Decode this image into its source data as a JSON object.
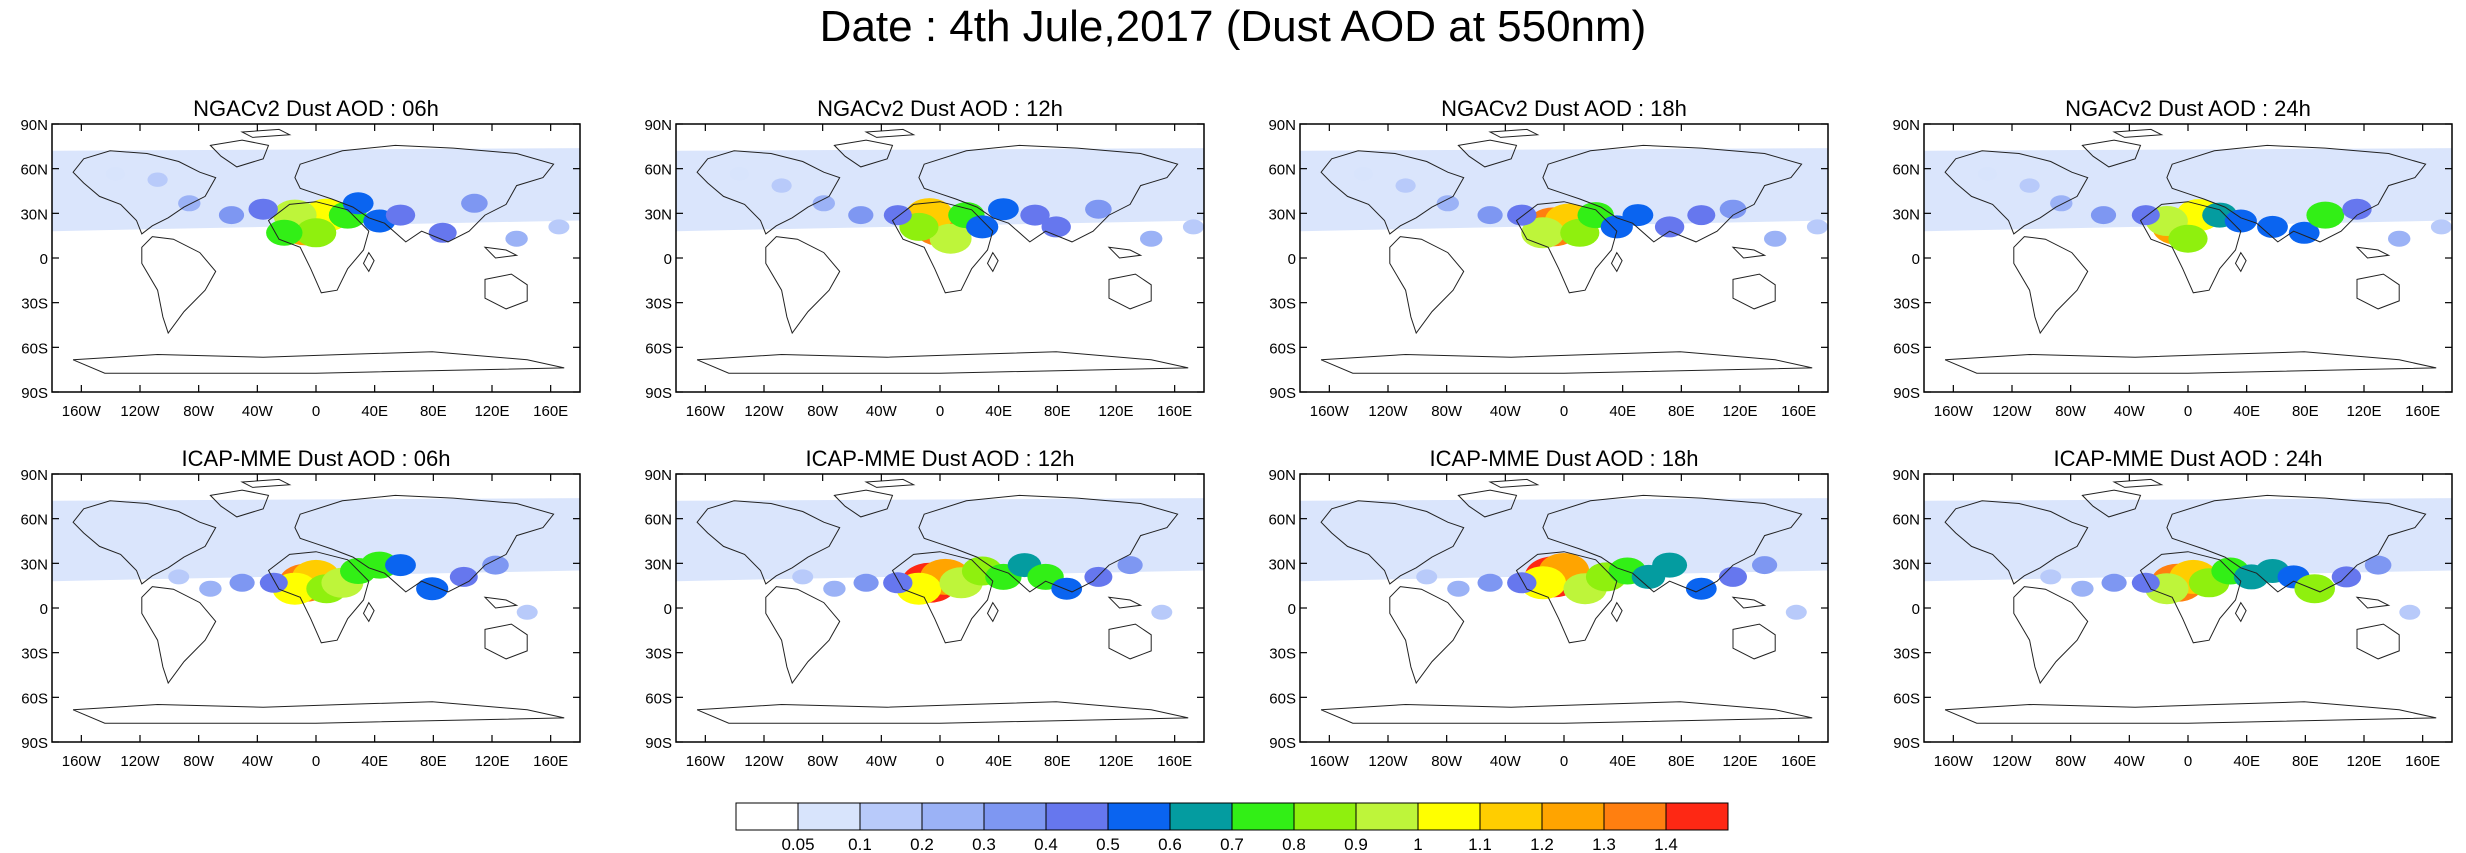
{
  "title": "Date : 4th Jule,2017 (Dust AOD at 550nm)",
  "panels": [
    {
      "title": "NGACv2 Dust AOD : 06h",
      "model": "NGACv2",
      "hour": "06h",
      "field": [
        [
          48,
          12,
          1.25
        ],
        [
          52,
          10,
          1.05
        ],
        [
          46,
          10,
          0.95
        ],
        [
          50,
          13,
          0.85
        ],
        [
          44,
          13,
          0.7
        ],
        [
          56,
          10,
          0.75
        ],
        [
          58,
          8,
          0.5
        ],
        [
          62,
          11,
          0.55
        ],
        [
          66,
          10,
          0.45
        ],
        [
          74,
          13,
          0.4
        ],
        [
          80,
          8,
          0.35
        ],
        [
          40,
          9,
          0.45
        ],
        [
          34,
          10,
          0.3
        ],
        [
          26,
          8,
          0.2
        ],
        [
          20,
          4,
          0.12
        ],
        [
          12,
          3,
          0.08
        ],
        [
          88,
          14,
          0.2
        ],
        [
          96,
          12,
          0.15
        ],
        [
          104,
          14,
          0.1
        ]
      ]
    },
    {
      "title": "NGACv2 Dust AOD : 12h",
      "model": "NGACv2",
      "hour": "12h",
      "field": [
        [
          50,
          12,
          1.3
        ],
        [
          48,
          10,
          1.1
        ],
        [
          52,
          14,
          0.9
        ],
        [
          46,
          12,
          0.8
        ],
        [
          55,
          10,
          0.7
        ],
        [
          58,
          12,
          0.55
        ],
        [
          62,
          9,
          0.5
        ],
        [
          68,
          10,
          0.45
        ],
        [
          72,
          12,
          0.45
        ],
        [
          80,
          9,
          0.35
        ],
        [
          42,
          10,
          0.4
        ],
        [
          35,
          10,
          0.3
        ],
        [
          28,
          8,
          0.2
        ],
        [
          20,
          5,
          0.12
        ],
        [
          12,
          3,
          0.08
        ],
        [
          90,
          14,
          0.2
        ],
        [
          98,
          12,
          0.15
        ]
      ]
    },
    {
      "title": "NGACv2 Dust AOD : 18h",
      "model": "NGACv2",
      "hour": "18h",
      "field": [
        [
          48,
          12,
          1.35
        ],
        [
          51,
          11,
          1.15
        ],
        [
          46,
          13,
          0.95
        ],
        [
          53,
          13,
          0.8
        ],
        [
          56,
          10,
          0.7
        ],
        [
          60,
          12,
          0.55
        ],
        [
          64,
          10,
          0.5
        ],
        [
          70,
          12,
          0.45
        ],
        [
          76,
          10,
          0.4
        ],
        [
          82,
          9,
          0.35
        ],
        [
          42,
          10,
          0.45
        ],
        [
          36,
          10,
          0.3
        ],
        [
          28,
          8,
          0.2
        ],
        [
          20,
          5,
          0.12
        ],
        [
          12,
          3,
          0.08
        ],
        [
          90,
          14,
          0.2
        ],
        [
          98,
          12,
          0.15
        ]
      ]
    },
    {
      "title": "NGACv2 Dust AOD : 24h",
      "model": "NGACv2",
      "hour": "24h",
      "field": [
        [
          48,
          12,
          1.2
        ],
        [
          52,
          10,
          1.0
        ],
        [
          46,
          11,
          0.9
        ],
        [
          50,
          14,
          0.8
        ],
        [
          56,
          10,
          0.65
        ],
        [
          60,
          11,
          0.55
        ],
        [
          66,
          12,
          0.5
        ],
        [
          72,
          13,
          0.5
        ],
        [
          76,
          10,
          0.75
        ],
        [
          82,
          9,
          0.45
        ],
        [
          42,
          10,
          0.4
        ],
        [
          34,
          10,
          0.3
        ],
        [
          26,
          8,
          0.2
        ],
        [
          20,
          5,
          0.12
        ],
        [
          12,
          3,
          0.08
        ],
        [
          90,
          14,
          0.2
        ],
        [
          98,
          12,
          0.15
        ]
      ]
    },
    {
      "title": "ICAP-MME Dust AOD : 06h",
      "model": "ICAP-MME",
      "hour": "06h",
      "field": [
        [
          48,
          13,
          1.3
        ],
        [
          50,
          12,
          1.1
        ],
        [
          46,
          14,
          1.0
        ],
        [
          52,
          14,
          0.85
        ],
        [
          55,
          13,
          0.9
        ],
        [
          58,
          11,
          0.7
        ],
        [
          62,
          10,
          0.75
        ],
        [
          66,
          10,
          0.5
        ],
        [
          72,
          14,
          0.55
        ],
        [
          78,
          12,
          0.4
        ],
        [
          84,
          10,
          0.35
        ],
        [
          42,
          13,
          0.4
        ],
        [
          36,
          13,
          0.3
        ],
        [
          30,
          14,
          0.2
        ],
        [
          24,
          12,
          0.15
        ],
        [
          90,
          18,
          0.15
        ]
      ]
    },
    {
      "title": "ICAP-MME Dust AOD : 12h",
      "model": "ICAP-MME",
      "hour": "12h",
      "field": [
        [
          48,
          13,
          1.4
        ],
        [
          51,
          12,
          1.2
        ],
        [
          46,
          14,
          1.0
        ],
        [
          54,
          13,
          0.95
        ],
        [
          58,
          11,
          0.85
        ],
        [
          62,
          12,
          0.7
        ],
        [
          66,
          10,
          0.6
        ],
        [
          70,
          12,
          0.7
        ],
        [
          74,
          14,
          0.5
        ],
        [
          80,
          12,
          0.4
        ],
        [
          86,
          10,
          0.3
        ],
        [
          42,
          13,
          0.45
        ],
        [
          36,
          13,
          0.3
        ],
        [
          30,
          14,
          0.2
        ],
        [
          24,
          12,
          0.15
        ],
        [
          92,
          18,
          0.15
        ]
      ]
    },
    {
      "title": "ICAP-MME Dust AOD : 18h",
      "model": "ICAP-MME",
      "hour": "18h",
      "field": [
        [
          48,
          12,
          1.45
        ],
        [
          50,
          11,
          1.2
        ],
        [
          46,
          13,
          1.05
        ],
        [
          54,
          14,
          0.95
        ],
        [
          58,
          12,
          0.85
        ],
        [
          62,
          11,
          0.75
        ],
        [
          66,
          12,
          0.6
        ],
        [
          70,
          10,
          0.65
        ],
        [
          76,
          14,
          0.5
        ],
        [
          82,
          12,
          0.4
        ],
        [
          88,
          10,
          0.3
        ],
        [
          42,
          13,
          0.45
        ],
        [
          36,
          13,
          0.3
        ],
        [
          30,
          14,
          0.2
        ],
        [
          24,
          12,
          0.15
        ],
        [
          94,
          18,
          0.15
        ]
      ]
    },
    {
      "title": "ICAP-MME Dust AOD : 24h",
      "model": "ICAP-MME",
      "hour": "24h",
      "field": [
        [
          48,
          13,
          1.3
        ],
        [
          51,
          12,
          1.1
        ],
        [
          46,
          14,
          0.95
        ],
        [
          54,
          13,
          0.85
        ],
        [
          58,
          11,
          0.75
        ],
        [
          62,
          12,
          0.65
        ],
        [
          66,
          11,
          0.6
        ],
        [
          70,
          12,
          0.55
        ],
        [
          74,
          14,
          0.85
        ],
        [
          80,
          12,
          0.45
        ],
        [
          86,
          10,
          0.35
        ],
        [
          42,
          13,
          0.4
        ],
        [
          36,
          13,
          0.3
        ],
        [
          30,
          14,
          0.2
        ],
        [
          24,
          12,
          0.15
        ],
        [
          92,
          18,
          0.15
        ]
      ]
    }
  ],
  "lat_ticks": [
    "90N",
    "60N",
    "30N",
    "0",
    "30S",
    "60S",
    "90S"
  ],
  "lon_ticks": [
    "160W",
    "120W",
    "80W",
    "40W",
    "0",
    "40E",
    "80E",
    "120E",
    "160E"
  ],
  "colorbar": {
    "colors": [
      "#ffffff",
      "#d8e4fc",
      "#b8cafa",
      "#9bb2f6",
      "#7e97f2",
      "#6677ee",
      "#0a64f0",
      "#049ca0",
      "#32ef16",
      "#8ff00e",
      "#bef53a",
      "#ffff00",
      "#ffcd00",
      "#ffa400",
      "#ff7f10",
      "#fe2814"
    ],
    "labels": [
      "0.05",
      "0.1",
      "0.2",
      "0.3",
      "0.4",
      "0.5",
      "0.6",
      "0.7",
      "0.8",
      "0.9",
      "1",
      "1.1",
      "1.2",
      "1.3",
      "1.4"
    ]
  },
  "background_dust_color": "#d8e4fc",
  "coast_color": "#222222"
}
